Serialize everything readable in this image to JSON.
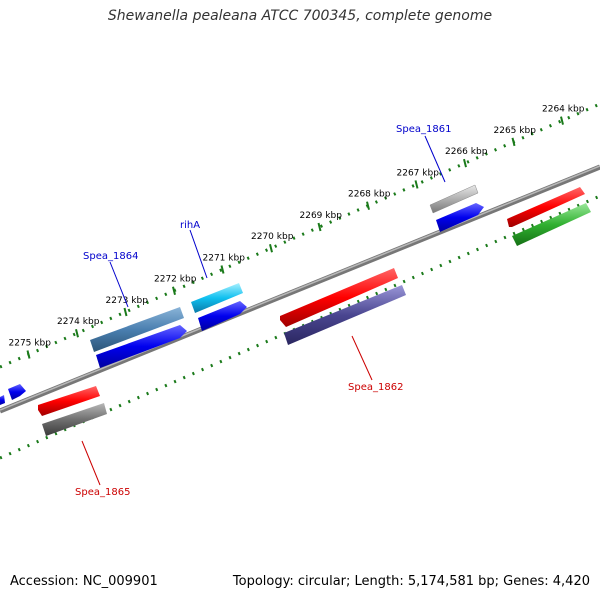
{
  "title": "Shewanella pealeana ATCC 700345, complete genome",
  "footer": {
    "accession": "Accession: NC_009901",
    "stats": "Topology: circular; Length: 5,174,581 bp; Genes: 4,420"
  },
  "ticks": [
    {
      "label": "2264 kbp",
      "kbp": 2264
    },
    {
      "label": "2265 kbp",
      "kbp": 2265
    },
    {
      "label": "2266 kbp",
      "kbp": 2266
    },
    {
      "label": "2267 kbp",
      "kbp": 2267
    },
    {
      "label": "2268 kbp",
      "kbp": 2268
    },
    {
      "label": "2269 kbp",
      "kbp": 2269
    },
    {
      "label": "2270 kbp",
      "kbp": 2270
    },
    {
      "label": "2271 kbp",
      "kbp": 2271
    },
    {
      "label": "2272 kbp",
      "kbp": 2272
    },
    {
      "label": "2273 kbp",
      "kbp": 2273
    },
    {
      "label": "2274 kbp",
      "kbp": 2274
    },
    {
      "label": "2275 kbp",
      "kbp": 2275
    }
  ],
  "gene_labels": {
    "spea1861": "Spea_1861",
    "riha": "rihA",
    "spea1864": "Spea_1864",
    "spea1862": "Spea_1862",
    "spea1865": "Spea_1865"
  },
  "colors": {
    "label_blue": "#0000cc",
    "label_red": "#cc0000",
    "tick_green": "#1a7a1a",
    "backbone": "#808080"
  }
}
